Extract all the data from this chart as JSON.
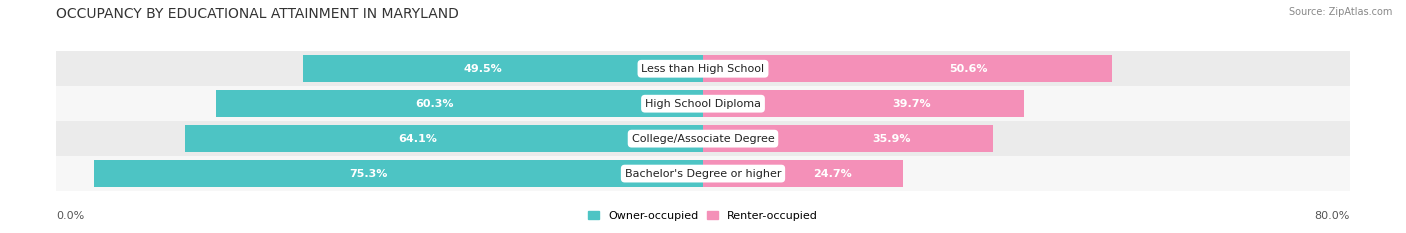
{
  "title": "OCCUPANCY BY EDUCATIONAL ATTAINMENT IN MARYLAND",
  "source": "Source: ZipAtlas.com",
  "categories": [
    "Less than High School",
    "High School Diploma",
    "College/Associate Degree",
    "Bachelor's Degree or higher"
  ],
  "owner_values": [
    49.5,
    60.3,
    64.1,
    75.3
  ],
  "renter_values": [
    50.6,
    39.7,
    35.9,
    24.7
  ],
  "owner_color": "#4DC4C4",
  "renter_color": "#F490B8",
  "row_bg_colors": [
    "#EBEBEB",
    "#F7F7F7",
    "#EBEBEB",
    "#F7F7F7"
  ],
  "axis_left_label": "0.0%",
  "axis_right_label": "80.0%",
  "legend_owner": "Owner-occupied",
  "legend_renter": "Renter-occupied",
  "title_fontsize": 10,
  "label_fontsize": 8,
  "value_fontsize": 8,
  "bar_height": 0.78,
  "xlim": [
    -80,
    80
  ],
  "figsize": [
    14.06,
    2.33
  ],
  "dpi": 100
}
